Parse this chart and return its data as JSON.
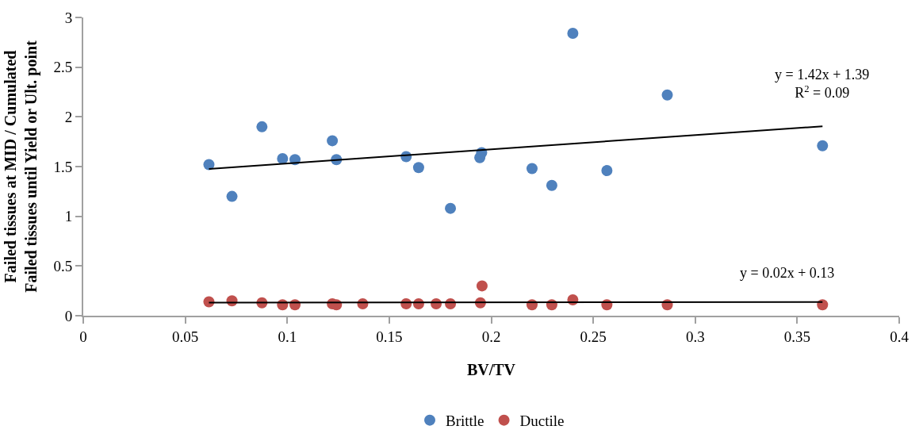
{
  "chart_data": {
    "type": "scatter",
    "xlabel": "BV/TV",
    "ylabel": "Failed tissues at MID / Cumulated\nFailed tissues until Yield or Ult. point",
    "xlim": [
      0,
      0.4
    ],
    "ylim": [
      0,
      3
    ],
    "xticks": [
      0,
      0.05,
      0.1,
      0.15,
      0.2,
      0.25,
      0.3,
      0.35,
      0.4
    ],
    "yticks": [
      0,
      0.5,
      1,
      1.5,
      2,
      2.5,
      3
    ],
    "legend": "bottom",
    "marker": "circle",
    "series": [
      {
        "name": "Brittle",
        "color": "#4f81bd",
        "x": [
          0.0616,
          0.0729,
          0.0876,
          0.0977,
          0.1038,
          0.1221,
          0.1241,
          0.1583,
          0.1644,
          0.18,
          0.1944,
          0.1953,
          0.22,
          0.2297,
          0.24,
          0.2567,
          0.2863,
          0.3624
        ],
        "values": [
          1.52,
          1.2,
          1.9,
          1.58,
          1.57,
          1.76,
          1.57,
          1.6,
          1.49,
          1.08,
          1.59,
          1.64,
          1.48,
          1.31,
          2.84,
          1.46,
          2.22,
          1.71
        ]
      },
      {
        "name": "Ductile",
        "color": "#c0504d",
        "x": [
          0.0616,
          0.0729,
          0.0876,
          0.0977,
          0.1038,
          0.1221,
          0.1241,
          0.137,
          0.1583,
          0.1644,
          0.173,
          0.18,
          0.1947,
          0.1955,
          0.22,
          0.2297,
          0.24,
          0.2567,
          0.2863,
          0.3624
        ],
        "values": [
          0.14,
          0.15,
          0.13,
          0.11,
          0.11,
          0.12,
          0.11,
          0.12,
          0.12,
          0.12,
          0.12,
          0.12,
          0.13,
          0.3,
          0.11,
          0.11,
          0.16,
          0.11,
          0.11,
          0.11
        ]
      },
      {
        "type": "line",
        "marker": "none",
        "color": "#000000",
        "x": [
          0.0616,
          0.3624
        ],
        "values": [
          1.477,
          1.905
        ]
      },
      {
        "type": "line",
        "marker": "none",
        "color": "#000000",
        "x": [
          0.0616,
          0.3624
        ],
        "values": [
          0.131,
          0.137
        ]
      }
    ],
    "annotations": [
      "y = 1.42x + 1.39\nR$^{2}$ = 0.09",
      "y = 0.02x + 0.13"
    ]
  }
}
